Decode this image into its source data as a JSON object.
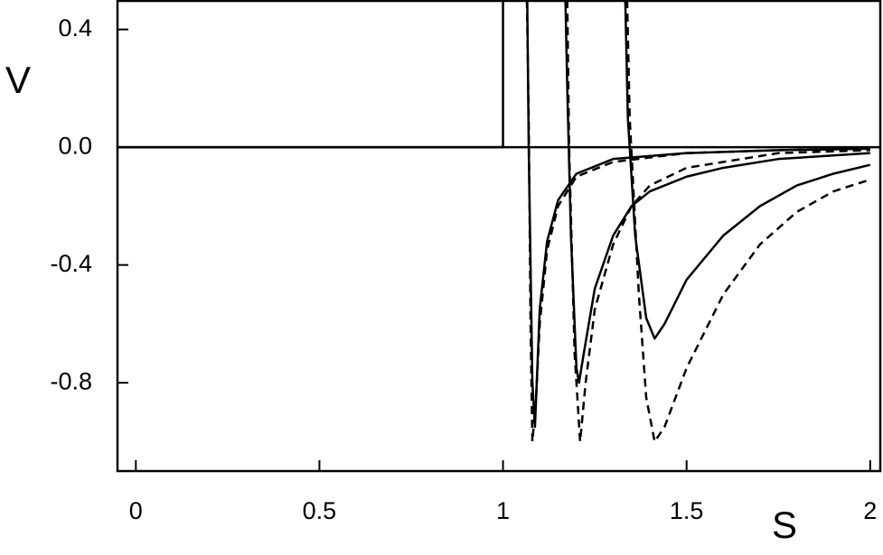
{
  "chart_data": {
    "type": "line",
    "x_label": "S",
    "y_label": "V",
    "xlim": [
      -0.05,
      2.03
    ],
    "ylim": [
      -1.1,
      0.5
    ],
    "xticks": [
      0,
      0.5,
      1,
      1.5,
      2
    ],
    "yticks": [
      0.4,
      {
        "value": 0,
        "label": "0.0"
      },
      -0.4,
      -0.8
    ],
    "zero_line": 0,
    "series": [
      {
        "color": "#000000",
        "dashed": false,
        "x": [
          -0.05,
          1,
          1
        ],
        "values": [
          0,
          0,
          0.5
        ]
      },
      {
        "color": "#000000",
        "dashed": true,
        "x": [
          1.065,
          1.07,
          1.075,
          1.08,
          1.09,
          1.1,
          1.12,
          1.15,
          1.2,
          1.3,
          1.5,
          1.75,
          2
        ],
        "values": [
          0.5,
          0.1,
          -0.6,
          -1,
          -0.85,
          -0.6,
          -0.35,
          -0.2,
          -0.1,
          -0.05,
          -0.02,
          -0.01,
          -0.005
        ]
      },
      {
        "color": "#000000",
        "dashed": false,
        "x": [
          1.066,
          1.07,
          1.08,
          1.087,
          1.1,
          1.12,
          1.15,
          1.2,
          1.3,
          1.5,
          1.75,
          2
        ],
        "values": [
          0.5,
          0,
          -0.8,
          -0.95,
          -0.55,
          -0.32,
          -0.18,
          -0.09,
          -0.04,
          -0.02,
          -0.01,
          -0.005
        ]
      },
      {
        "color": "#000000",
        "dashed": false,
        "x": [
          1.17,
          1.175,
          1.185,
          1.2,
          1.207,
          1.22,
          1.25,
          1.3,
          1.35,
          1.4,
          1.5,
          1.6,
          1.75,
          2
        ],
        "values": [
          0.5,
          0.2,
          -0.3,
          -0.75,
          -0.8,
          -0.7,
          -0.48,
          -0.3,
          -0.2,
          -0.15,
          -0.1,
          -0.07,
          -0.04,
          -0.02
        ]
      },
      {
        "color": "#000000",
        "dashed": true,
        "x": [
          1.175,
          1.18,
          1.195,
          1.21,
          1.225,
          1.25,
          1.3,
          1.35,
          1.4,
          1.5,
          1.75,
          2
        ],
        "values": [
          0.5,
          0,
          -0.7,
          -1,
          -0.8,
          -0.55,
          -0.33,
          -0.2,
          -0.13,
          -0.07,
          -0.02,
          -0.01
        ]
      },
      {
        "color": "#000000",
        "dashed": false,
        "x": [
          1.333,
          1.34,
          1.36,
          1.39,
          1.413,
          1.44,
          1.5,
          1.6,
          1.7,
          1.8,
          1.9,
          2
        ],
        "values": [
          0.5,
          0.1,
          -0.3,
          -0.58,
          -0.65,
          -0.6,
          -0.45,
          -0.3,
          -0.2,
          -0.13,
          -0.09,
          -0.06
        ]
      },
      {
        "color": "#000000",
        "dashed": true,
        "x": [
          1.338,
          1.345,
          1.37,
          1.39,
          1.413,
          1.44,
          1.5,
          1.6,
          1.7,
          1.8,
          1.9,
          2
        ],
        "values": [
          0.5,
          0.1,
          -0.5,
          -0.85,
          -1,
          -0.95,
          -0.75,
          -0.5,
          -0.33,
          -0.22,
          -0.15,
          -0.11
        ]
      }
    ]
  }
}
